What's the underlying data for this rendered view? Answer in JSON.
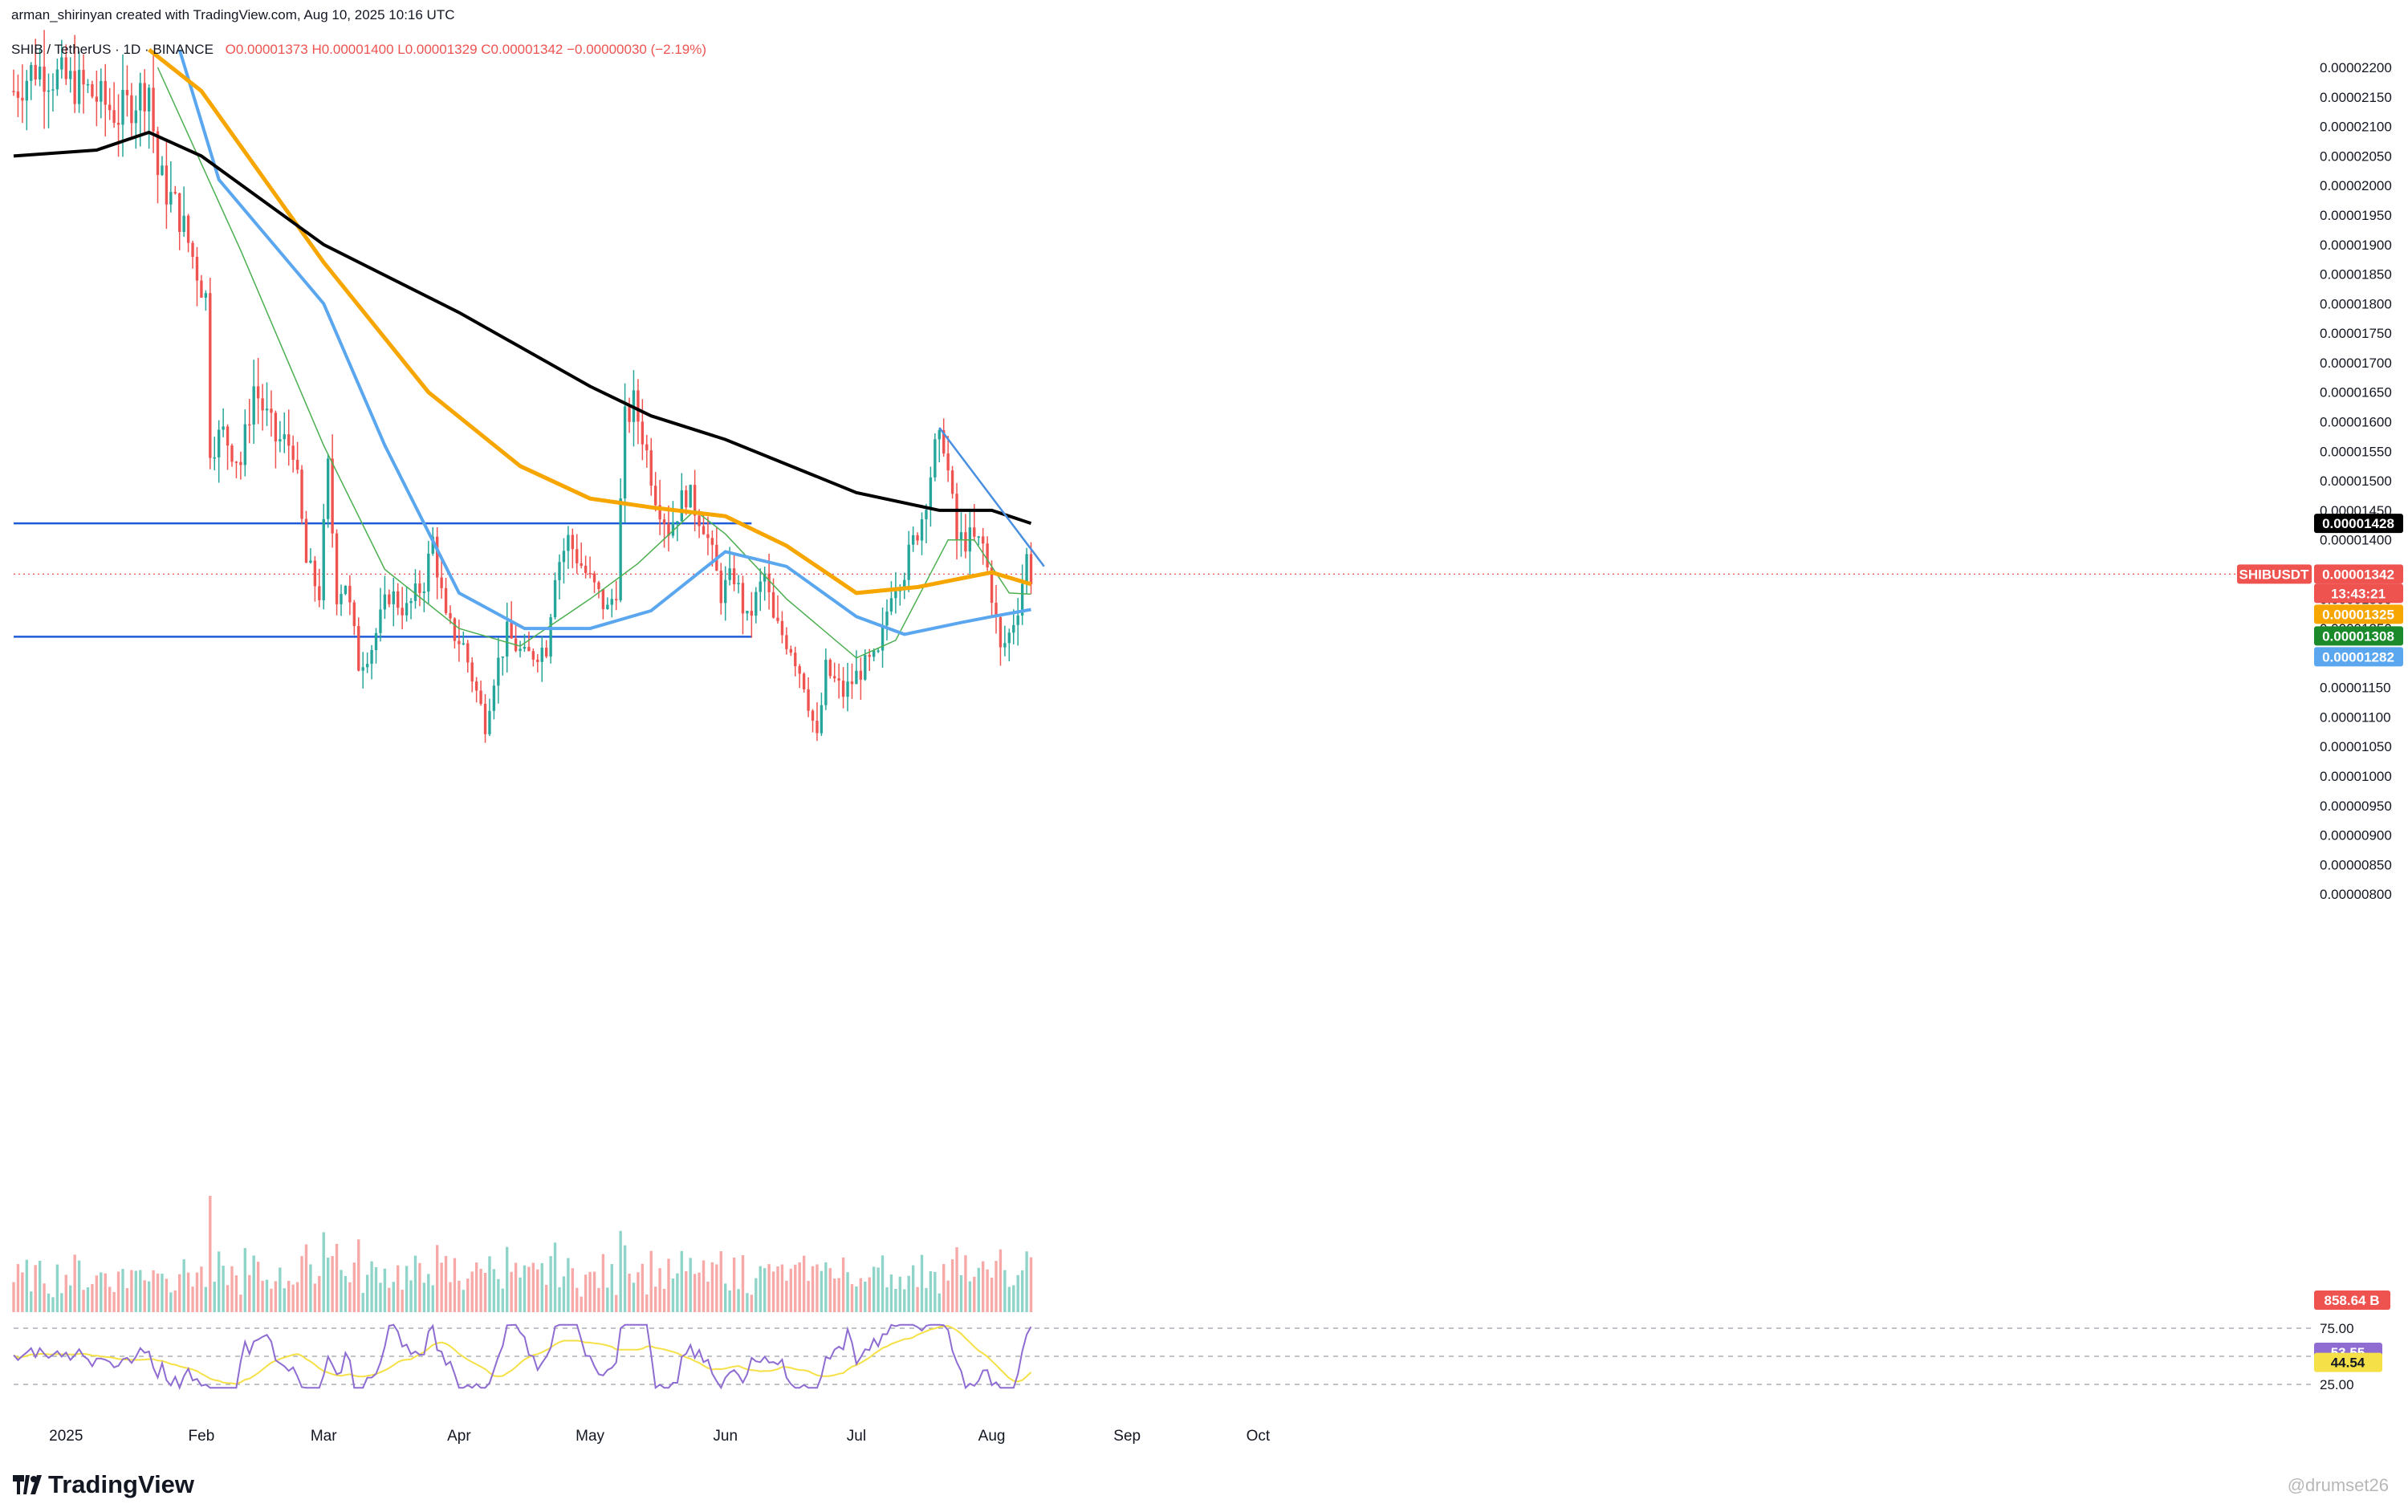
{
  "header": {
    "created": "arman_shirinyan created with TradingView.com, Aug 10, 2025 10:16 UTC",
    "symbol": "SHIB / TetherUS · 1D · BINANCE",
    "o": "O0.00001373",
    "h": "H0.00001400",
    "l": "L0.00001329",
    "c": "C0.00001342",
    "chg": "−0.00000030 (−2.19%)"
  },
  "brand": "TradingView",
  "watermark": "@drumset26",
  "colors": {
    "up": "#26a69a",
    "down": "#ef5350",
    "up_vol": "#8fd4c9",
    "down_vol": "#f7a9a7",
    "ma200": "#000000",
    "ma100": "#f7a600",
    "ma50": "#5aa7ef",
    "ma20": "#4caf50",
    "hline": "#1e5bd8",
    "trend": "#4a8fe0",
    "rsi": "#8e6cd1",
    "rsi_ma": "#f5e147"
  },
  "chart_data": {
    "type": "candlestick",
    "y_axis": {
      "ylim": [
        7.7e-07,
        2.225e-05
      ],
      "ticks": [
        "0.00002200",
        "0.00002150",
        "0.00002100",
        "0.00002050",
        "0.00002000",
        "0.00001950",
        "0.00001900",
        "0.00001850",
        "0.00001800",
        "0.00001750",
        "0.00001700",
        "0.00001650",
        "0.00001600",
        "0.00001550",
        "0.00001500",
        "0.00001450",
        "0.00001400",
        "0.00001350",
        "0.00001300",
        "0.00001250",
        "0.00001200",
        "0.00001150",
        "0.00001100",
        "0.00001050",
        "0.00001000",
        "0.00000950",
        "0.00000900",
        "0.00000850",
        "0.00000800"
      ]
    },
    "x_axis": {
      "start": "2024-12-20",
      "end": "2025-10-31",
      "ticks": [
        {
          "label": "2025",
          "date": "2025-01-01"
        },
        {
          "label": "Feb",
          "date": "2025-02-01"
        },
        {
          "label": "Mar",
          "date": "2025-03-01"
        },
        {
          "label": "Apr",
          "date": "2025-04-01"
        },
        {
          "label": "May",
          "date": "2025-05-01"
        },
        {
          "label": "Jun",
          "date": "2025-06-01"
        },
        {
          "label": "Jul",
          "date": "2025-07-01"
        },
        {
          "label": "Aug",
          "date": "2025-08-01"
        },
        {
          "label": "Sep",
          "date": "2025-09-01"
        },
        {
          "label": "Oct",
          "date": "2025-10-01"
        }
      ]
    },
    "price_anchors": [
      [
        "2024-12-20",
        2.16e-05
      ],
      [
        "2024-12-25",
        2.2e-05
      ],
      [
        "2025-01-06",
        2.16e-05
      ],
      [
        "2025-01-13",
        2.12e-05
      ],
      [
        "2025-01-20",
        2.17e-05
      ],
      [
        "2025-01-22",
        2.02e-05
      ],
      [
        "2025-01-27",
        1.95e-05
      ],
      [
        "2025-02-02",
        1.81e-05
      ],
      [
        "2025-02-03",
        1.56e-05
      ],
      [
        "2025-02-06",
        1.58e-05
      ],
      [
        "2025-02-10",
        1.53e-05
      ],
      [
        "2025-02-13",
        1.66e-05
      ],
      [
        "2025-02-18",
        1.57e-05
      ],
      [
        "2025-02-22",
        1.56e-05
      ],
      [
        "2025-02-25",
        1.36e-05
      ],
      [
        "2025-02-28",
        1.31e-05
      ],
      [
        "2025-03-02",
        1.52e-05
      ],
      [
        "2025-03-04",
        1.31e-05
      ],
      [
        "2025-03-06",
        1.33e-05
      ],
      [
        "2025-03-09",
        1.19e-05
      ],
      [
        "2025-03-12",
        1.22e-05
      ],
      [
        "2025-03-16",
        1.31e-05
      ],
      [
        "2025-03-20",
        1.28e-05
      ],
      [
        "2025-03-24",
        1.33e-05
      ],
      [
        "2025-03-26",
        1.4e-05
      ],
      [
        "2025-03-29",
        1.26e-05
      ],
      [
        "2025-04-02",
        1.22e-05
      ],
      [
        "2025-04-07",
        1.09e-05
      ],
      [
        "2025-04-09",
        1.17e-05
      ],
      [
        "2025-04-12",
        1.24e-05
      ],
      [
        "2025-04-16",
        1.2e-05
      ],
      [
        "2025-04-21",
        1.22e-05
      ],
      [
        "2025-04-23",
        1.35e-05
      ],
      [
        "2025-04-26",
        1.4e-05
      ],
      [
        "2025-05-01",
        1.33e-05
      ],
      [
        "2025-05-05",
        1.28e-05
      ],
      [
        "2025-05-07",
        1.32e-05
      ],
      [
        "2025-05-09",
        1.6e-05
      ],
      [
        "2025-05-11",
        1.63e-05
      ],
      [
        "2025-05-13",
        1.58e-05
      ],
      [
        "2025-05-16",
        1.48e-05
      ],
      [
        "2025-05-19",
        1.42e-05
      ],
      [
        "2025-05-23",
        1.48e-05
      ],
      [
        "2025-05-27",
        1.43e-05
      ],
      [
        "2025-05-31",
        1.31e-05
      ],
      [
        "2025-06-03",
        1.34e-05
      ],
      [
        "2025-06-06",
        1.26e-05
      ],
      [
        "2025-06-10",
        1.34e-05
      ],
      [
        "2025-06-12",
        1.26e-05
      ],
      [
        "2025-06-16",
        1.22e-05
      ],
      [
        "2025-06-19",
        1.16e-05
      ],
      [
        "2025-06-22",
        1.06e-05
      ],
      [
        "2025-06-24",
        1.18e-05
      ],
      [
        "2025-06-28",
        1.14e-05
      ],
      [
        "2025-07-02",
        1.18e-05
      ],
      [
        "2025-07-06",
        1.2e-05
      ],
      [
        "2025-07-09",
        1.32e-05
      ],
      [
        "2025-07-12",
        1.35e-05
      ],
      [
        "2025-07-16",
        1.44e-05
      ],
      [
        "2025-07-19",
        1.55e-05
      ],
      [
        "2025-07-21",
        1.57e-05
      ],
      [
        "2025-07-24",
        1.4e-05
      ],
      [
        "2025-07-27",
        1.4e-05
      ],
      [
        "2025-07-30",
        1.39e-05
      ],
      [
        "2025-08-01",
        1.31e-05
      ],
      [
        "2025-08-03",
        1.21e-05
      ],
      [
        "2025-08-05",
        1.24e-05
      ],
      [
        "2025-08-07",
        1.29e-05
      ],
      [
        "2025-08-09",
        1.37e-05
      ],
      [
        "2025-08-10",
        1.34e-05
      ]
    ],
    "ma200": [
      [
        "2024-12-20",
        2.05e-05
      ],
      [
        "2025-01-08",
        2.06e-05
      ],
      [
        "2025-01-20",
        2.09e-05
      ],
      [
        "2025-02-01",
        2.05e-05
      ],
      [
        "2025-03-01",
        1.9e-05
      ],
      [
        "2025-04-01",
        1.785e-05
      ],
      [
        "2025-05-01",
        1.66e-05
      ],
      [
        "2025-05-15",
        1.61e-05
      ],
      [
        "2025-06-01",
        1.57e-05
      ],
      [
        "2025-07-01",
        1.48e-05
      ],
      [
        "2025-07-20",
        1.45e-05
      ],
      [
        "2025-08-01",
        1.45e-05
      ],
      [
        "2025-08-10",
        1.428e-05
      ]
    ],
    "ma100": [
      [
        "2025-01-20",
        2.23e-05
      ],
      [
        "2025-02-01",
        2.16e-05
      ],
      [
        "2025-03-01",
        1.87e-05
      ],
      [
        "2025-03-25",
        1.65e-05
      ],
      [
        "2025-04-15",
        1.525e-05
      ],
      [
        "2025-05-01",
        1.47e-05
      ],
      [
        "2025-05-15",
        1.455e-05
      ],
      [
        "2025-06-01",
        1.44e-05
      ],
      [
        "2025-06-15",
        1.39e-05
      ],
      [
        "2025-07-01",
        1.31e-05
      ],
      [
        "2025-07-15",
        1.32e-05
      ],
      [
        "2025-08-01",
        1.345e-05
      ],
      [
        "2025-08-10",
        1.325e-05
      ]
    ],
    "ma50": [
      [
        "2025-01-27",
        2.23e-05
      ],
      [
        "2025-02-05",
        2.01e-05
      ],
      [
        "2025-03-01",
        1.8e-05
      ],
      [
        "2025-03-15",
        1.56e-05
      ],
      [
        "2025-04-01",
        1.31e-05
      ],
      [
        "2025-04-16",
        1.25e-05
      ],
      [
        "2025-05-01",
        1.25e-05
      ],
      [
        "2025-05-15",
        1.28e-05
      ],
      [
        "2025-06-01",
        1.38e-05
      ],
      [
        "2025-06-15",
        1.355e-05
      ],
      [
        "2025-07-01",
        1.27e-05
      ],
      [
        "2025-07-12",
        1.24e-05
      ],
      [
        "2025-07-25",
        1.26e-05
      ],
      [
        "2025-08-01",
        1.27e-05
      ],
      [
        "2025-08-10",
        1.282e-05
      ]
    ],
    "ma20": [
      [
        "2025-01-22",
        2.2e-05
      ],
      [
        "2025-02-10",
        1.89e-05
      ],
      [
        "2025-03-01",
        1.56e-05
      ],
      [
        "2025-03-15",
        1.35e-05
      ],
      [
        "2025-04-01",
        1.25e-05
      ],
      [
        "2025-04-15",
        1.22e-05
      ],
      [
        "2025-05-01",
        1.3e-05
      ],
      [
        "2025-05-12",
        1.36e-05
      ],
      [
        "2025-05-25",
        1.45e-05
      ],
      [
        "2025-06-01",
        1.41e-05
      ],
      [
        "2025-06-15",
        1.3e-05
      ],
      [
        "2025-07-01",
        1.2e-05
      ],
      [
        "2025-07-10",
        1.23e-05
      ],
      [
        "2025-07-22",
        1.4e-05
      ],
      [
        "2025-07-28",
        1.4e-05
      ],
      [
        "2025-08-05",
        1.31e-05
      ],
      [
        "2025-08-10",
        1.308e-05
      ]
    ],
    "hlines": [
      1.428e-05,
      1.236e-05
    ],
    "trendline": [
      [
        "2025-07-20",
        1.59e-05
      ],
      [
        "2025-08-13",
        1.355e-05
      ]
    ],
    "last_price": 1.342e-05,
    "price_labels": [
      {
        "text": "0.00001428",
        "color": "#000000",
        "value": 1.428e-05
      },
      {
        "text": "SHIBUSDT",
        "color": "#ef5350",
        "value": 1.342e-05,
        "symbol": true
      },
      {
        "text": "0.00001342",
        "color": "#ef5350",
        "value": 1.342e-05
      },
      {
        "text": "13:43:21",
        "color": "#ef5350",
        "value": 1.342e-05,
        "sub": true
      },
      {
        "text": "0.00001325",
        "color": "#f7a600",
        "value": 1.325e-05
      },
      {
        "text": "0.00001308",
        "color": "#1b8a2a",
        "value": 1.308e-05
      },
      {
        "text": "0.00001282",
        "color": "#5aa7ef",
        "value": 1.282e-05
      }
    ],
    "volume_label": "858.64 B",
    "rsi": {
      "levels": [
        75,
        25
      ],
      "ticks": [
        "75.00",
        "25.00"
      ],
      "value_labels": [
        {
          "text": "53.55",
          "value": 53.55,
          "color": "#8e6cd1"
        },
        {
          "text": "44.54",
          "value": 44.54,
          "color": "#f5e147"
        }
      ]
    }
  }
}
